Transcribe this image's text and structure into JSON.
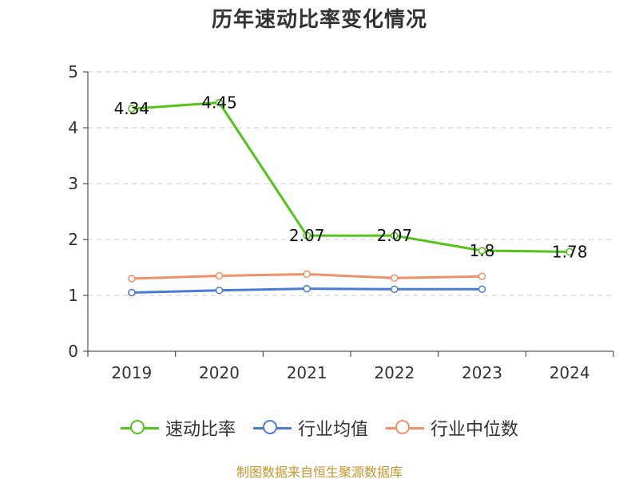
{
  "chart_data": {
    "type": "line",
    "title": "历年速动比率变化情况",
    "categories": [
      "2019",
      "2020",
      "2021",
      "2022",
      "2023",
      "2024"
    ],
    "ylim": [
      0,
      5
    ],
    "yticks": [
      0,
      1,
      2,
      3,
      4,
      5
    ],
    "grid": true,
    "legend_position": "bottom",
    "series": [
      {
        "name": "速动比率",
        "color": "#52c41a",
        "values": [
          4.34,
          4.45,
          2.07,
          2.07,
          1.8,
          1.78
        ],
        "labels": [
          "4.34",
          "4.45",
          "2.07",
          "2.07",
          "1.8",
          "1.78"
        ]
      },
      {
        "name": "行业均值",
        "color": "#4a7bd6",
        "values": [
          1.05,
          1.09,
          1.12,
          1.11,
          1.11,
          null
        ]
      },
      {
        "name": "行业中位数",
        "color": "#f0906a",
        "values": [
          1.3,
          1.35,
          1.38,
          1.31,
          1.34,
          null
        ]
      }
    ]
  },
  "source": "制图数据来自恒生聚源数据库"
}
